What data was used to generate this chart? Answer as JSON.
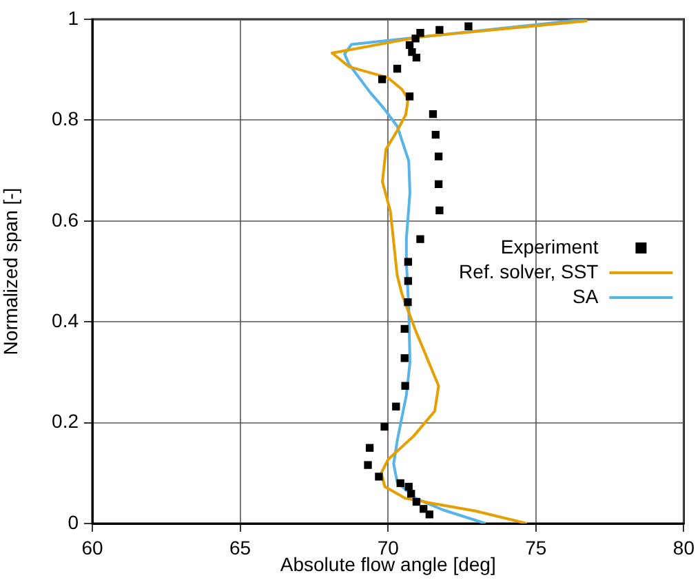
{
  "chart_data": {
    "type": "scatter",
    "xlabel": "Absolute flow angle [deg]",
    "ylabel": "Normalized span [-]",
    "xlim": [
      60,
      80
    ],
    "xticks": [
      60,
      65,
      70,
      75,
      80
    ],
    "ylim": [
      0,
      1
    ],
    "yticks": [
      0,
      0.2,
      0.4,
      0.6,
      0.8,
      1
    ],
    "grid": true,
    "legend": "right",
    "series": [
      {
        "name": "Experiment",
        "marker": "square",
        "color": "#000000",
        "x": [
          72.72,
          71.74,
          71.09,
          70.93,
          70.73,
          70.81,
          70.96,
          70.31,
          69.8,
          70.73,
          71.52,
          71.61,
          71.71,
          71.71,
          71.74,
          71.09,
          70.68,
          70.68,
          70.67,
          70.56,
          70.56,
          70.58,
          70.27,
          69.88,
          69.38,
          69.32,
          69.69,
          70.42,
          70.7,
          70.78,
          70.96,
          71.2,
          71.4
        ],
        "values": [
          0.986,
          0.979,
          0.973,
          0.962,
          0.949,
          0.935,
          0.924,
          0.902,
          0.881,
          0.847,
          0.812,
          0.771,
          0.728,
          0.673,
          0.621,
          0.564,
          0.519,
          0.481,
          0.439,
          0.386,
          0.328,
          0.273,
          0.232,
          0.192,
          0.15,
          0.116,
          0.093,
          0.08,
          0.073,
          0.059,
          0.043,
          0.029,
          0.018
        ]
      },
      {
        "name": "Ref. solver, SST",
        "type": "line",
        "marker": "none",
        "color": "#e69f00",
        "x": [
          76.74,
          71.06,
          68.11,
          68.68,
          70.0,
          70.47,
          70.68,
          70.6,
          70.31,
          69.93,
          69.81,
          70.08,
          70.31,
          70.47,
          70.93,
          71.71,
          71.58,
          70.86,
          70.0,
          69.77,
          69.89,
          70.59,
          71.4,
          72.95,
          74.7
        ],
        "values": [
          0.997,
          0.965,
          0.933,
          0.906,
          0.884,
          0.861,
          0.842,
          0.811,
          0.779,
          0.742,
          0.678,
          0.619,
          0.492,
          0.455,
          0.383,
          0.273,
          0.223,
          0.173,
          0.127,
          0.1,
          0.073,
          0.05,
          0.041,
          0.025,
          0
        ]
      },
      {
        "name": "SA",
        "type": "line",
        "marker": "none",
        "color": "#56b4e9",
        "x": [
          76.7,
          68.76,
          68.53,
          68.68,
          69.38,
          69.85,
          70.31,
          70.7,
          70.74,
          70.62,
          70.62,
          70.7,
          70.74,
          70.62,
          70.31,
          70.19,
          70.31,
          70.93,
          71.86,
          73.3
        ],
        "values": [
          1.0,
          0.95,
          0.931,
          0.911,
          0.856,
          0.824,
          0.788,
          0.719,
          0.656,
          0.565,
          0.519,
          0.428,
          0.319,
          0.255,
          0.164,
          0.118,
          0.082,
          0.05,
          0.027,
          0
        ]
      }
    ]
  }
}
